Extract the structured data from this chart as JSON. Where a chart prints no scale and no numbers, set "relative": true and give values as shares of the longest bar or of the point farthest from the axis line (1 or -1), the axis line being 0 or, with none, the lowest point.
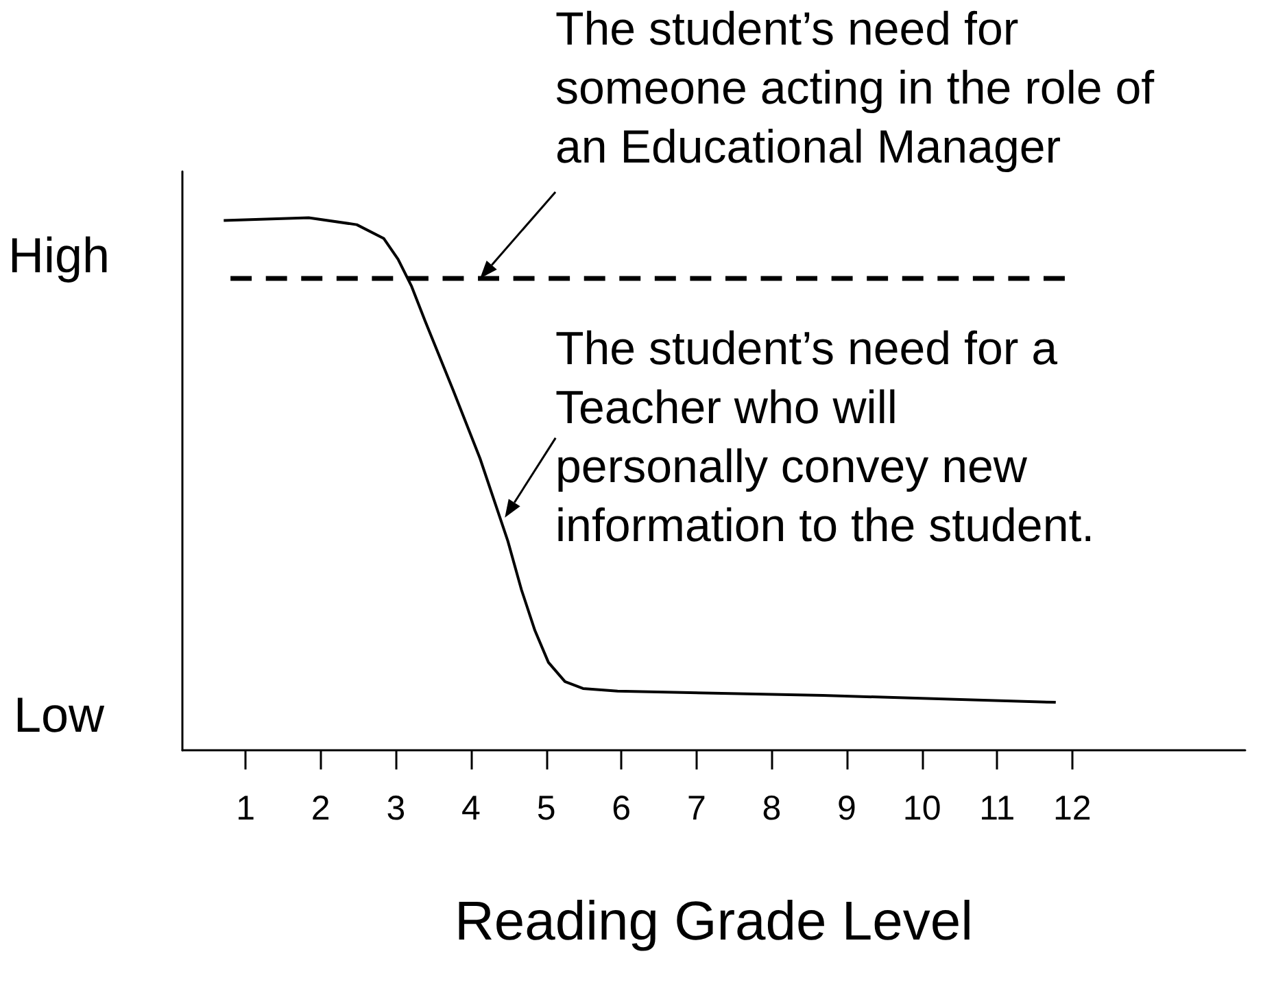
{
  "chart_data": {
    "type": "line",
    "relative": true,
    "xlabel": "Reading Grade Level",
    "xlim": [
      0.16,
      14.3
    ],
    "xticks": [
      1,
      2,
      3,
      4,
      5,
      6,
      7,
      8,
      9,
      10,
      11,
      12
    ],
    "grid": false,
    "marker": "none",
    "series": [
      {
        "color": "#000000",
        "line_style": "solid",
        "x": [
          0.71,
          1.84,
          2.48,
          2.84,
          3.03,
          3.21,
          3.39,
          3.76,
          4.12,
          4.49,
          4.67,
          4.85,
          5.03,
          5.25,
          5.49,
          5.95,
          8.68,
          11.78
        ],
        "values": [
          0.995,
          1.0,
          0.987,
          0.961,
          0.922,
          0.871,
          0.806,
          0.677,
          0.548,
          0.393,
          0.302,
          0.225,
          0.165,
          0.129,
          0.116,
          0.111,
          0.103,
          0.09
        ]
      },
      {
        "color": "#000000",
        "line_style": "dashed",
        "x": [
          0.8,
          11.9
        ],
        "values": [
          0.886,
          0.886
        ]
      }
    ],
    "annotations": [
      {
        "text": "The student’s need for someone acting in the role of an Educational Manager",
        "x": 4.12,
        "y": 0.886
      },
      {
        "text": "The student’s need for a Teacher who will personally convey new information to the student.",
        "x": 4.45,
        "y": 0.437
      },
      "High",
      "Low"
    ]
  }
}
